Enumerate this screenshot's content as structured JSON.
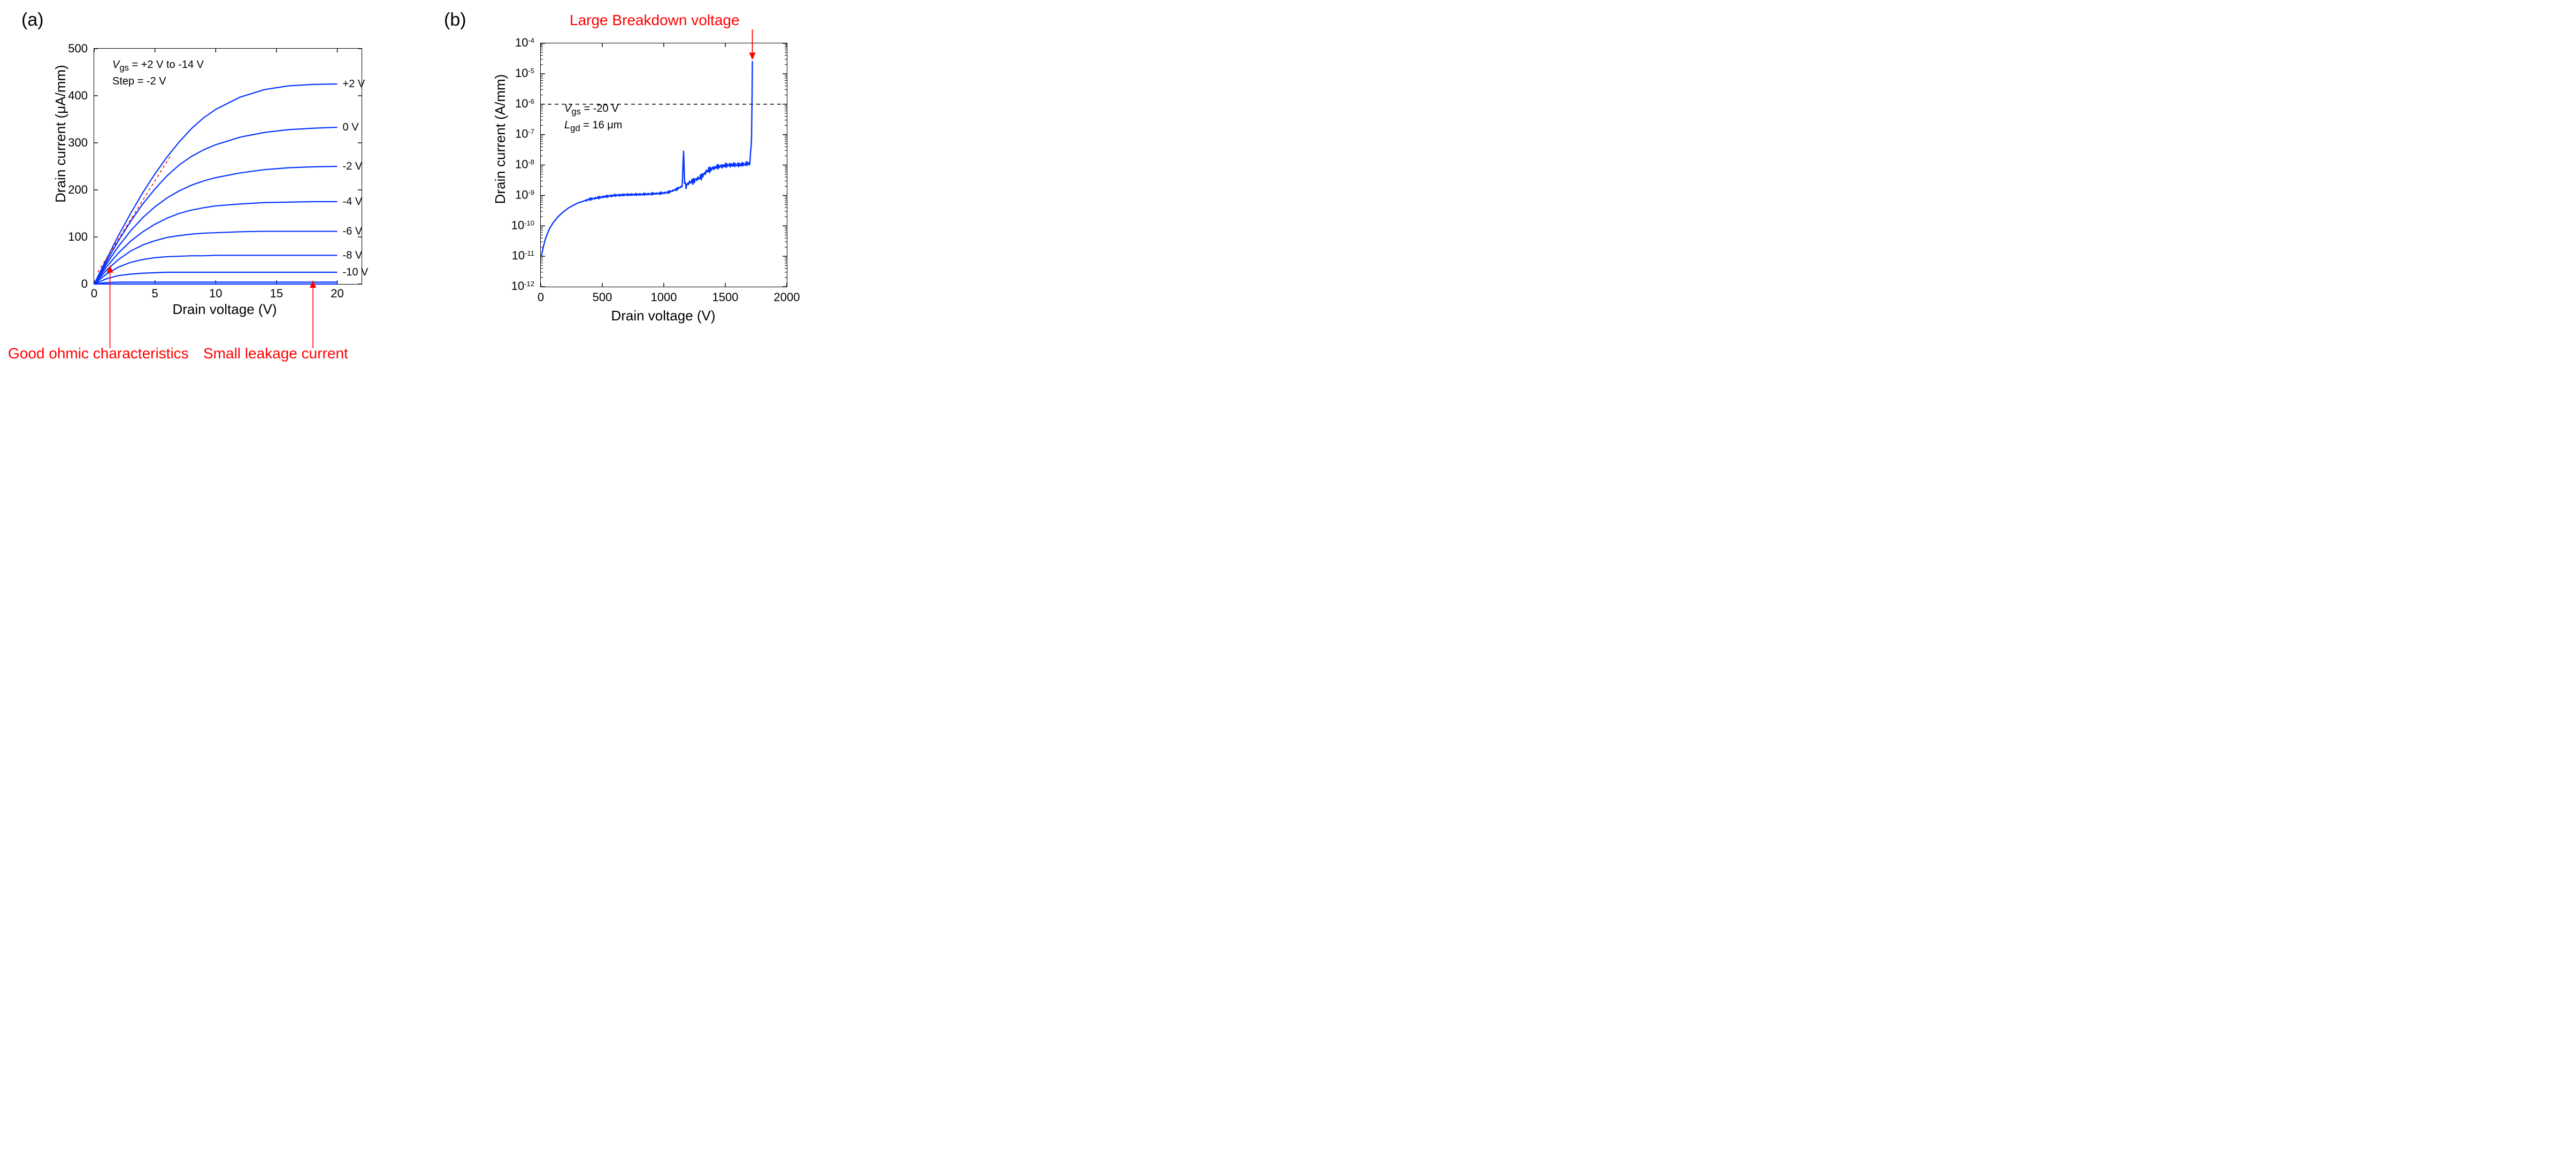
{
  "panelA": {
    "label": "(a)",
    "chart": {
      "type": "line",
      "xlabel": "Drain voltage (V)",
      "ylabel": "Drain current (μA/mm)",
      "xlim": [
        0,
        22
      ],
      "ylim": [
        0,
        500
      ],
      "xtick_step": 5,
      "ytick_step": 100,
      "xticks": [
        0,
        5,
        10,
        15,
        20
      ],
      "yticks": [
        0,
        100,
        200,
        300,
        400,
        500
      ],
      "line_color": "#0433ff",
      "line_width": 2.2,
      "background_color": "#ffffff",
      "frame_color": "#000000",
      "label_fontsize": 26,
      "tick_fontsize": 22,
      "caption_lines": [
        "V_gs = +2 V to -14 V",
        "Step = -2 V"
      ],
      "ohmic_line": {
        "x0": 0.3,
        "y0": 25,
        "x1": 6.3,
        "y1": 273,
        "color": "#ff0000",
        "dash": "5,5",
        "width": 1.6
      },
      "series": [
        {
          "label": "+2 V",
          "x": [
            0,
            1,
            2,
            3,
            4,
            5,
            6,
            7,
            8,
            9,
            10,
            12,
            14,
            16,
            18,
            20
          ],
          "y": [
            0,
            52,
            103,
            150,
            194,
            234,
            270,
            302,
            330,
            353,
            371,
            397,
            413,
            421,
            424,
            425
          ]
        },
        {
          "label": "0 V",
          "x": [
            0,
            1,
            2,
            3,
            4,
            5,
            6,
            7,
            8,
            9,
            10,
            12,
            14,
            16,
            18,
            20
          ],
          "y": [
            0,
            47,
            92,
            133,
            170,
            202,
            230,
            253,
            271,
            285,
            296,
            312,
            322,
            328,
            331,
            333
          ]
        },
        {
          "label": "-2 V",
          "x": [
            0,
            1,
            2,
            3,
            4,
            5,
            6,
            7,
            8,
            9,
            10,
            12,
            14,
            16,
            18,
            20
          ],
          "y": [
            0,
            42,
            80,
            113,
            141,
            164,
            183,
            198,
            210,
            219,
            226,
            236,
            243,
            247,
            249,
            250
          ]
        },
        {
          "label": "-4 V",
          "x": [
            0,
            1,
            2,
            3,
            4,
            5,
            6,
            7,
            8,
            9,
            10,
            12,
            14,
            16,
            18,
            20
          ],
          "y": [
            0,
            36,
            66,
            91,
            111,
            127,
            140,
            150,
            157,
            162,
            166,
            170,
            173,
            174,
            175,
            175
          ]
        },
        {
          "label": "-6 V",
          "x": [
            0,
            1,
            2,
            3,
            4,
            5,
            6,
            7,
            8,
            9,
            10,
            12,
            14,
            16,
            18,
            20
          ],
          "y": [
            0,
            29,
            52,
            70,
            83,
            92,
            99,
            103,
            106,
            108,
            109,
            111,
            112,
            112,
            112,
            112
          ]
        },
        {
          "label": "-8 V",
          "x": [
            0,
            1,
            2,
            3,
            4,
            5,
            6,
            7,
            8,
            9,
            10,
            12,
            14,
            16,
            18,
            20
          ],
          "y": [
            0,
            21,
            36,
            46,
            52,
            56,
            58,
            59,
            60,
            60,
            61,
            61,
            61,
            61,
            61,
            61
          ]
        },
        {
          "label": "-10 V",
          "x": [
            0,
            1,
            2,
            3,
            4,
            5,
            6,
            7,
            8,
            9,
            10,
            12,
            14,
            16,
            18,
            20
          ],
          "y": [
            0,
            11,
            18,
            21,
            23,
            24,
            25,
            25,
            25,
            25,
            25,
            25,
            25,
            25,
            25,
            25
          ]
        },
        {
          "label": "",
          "x": [
            0,
            1,
            2,
            3,
            4,
            5,
            6,
            7,
            8,
            9,
            10,
            12,
            14,
            16,
            18,
            20
          ],
          "y": [
            0,
            3,
            4,
            4,
            4,
            4,
            4,
            4,
            4,
            4,
            4,
            4,
            4,
            4,
            4,
            4
          ]
        },
        {
          "label": "",
          "x": [
            0,
            20
          ],
          "y": [
            0,
            0
          ]
        }
      ]
    },
    "annotations": {
      "ohmic": "Good ohmic characteristics",
      "leakage": "Small leakage current"
    }
  },
  "panelB": {
    "label": "(b)",
    "chart": {
      "type": "line-logy",
      "xlabel": "Drain voltage (V)",
      "ylabel": "Drain current (A/mm)",
      "xlim": [
        0,
        2000
      ],
      "ylim_exp": [
        -12,
        -4
      ],
      "xtick_step": 500,
      "xticks": [
        0,
        500,
        1000,
        1500,
        2000
      ],
      "ytick_exponents": [
        -12,
        -11,
        -10,
        -9,
        -8,
        -7,
        -6,
        -5,
        -4
      ],
      "line_color": "#0433ff",
      "line_width": 2.4,
      "background_color": "#ffffff",
      "frame_color": "#000000",
      "label_fontsize": 26,
      "tick_fontsize": 22,
      "caption_lines": [
        "V_gs = -20 V",
        "L_gd = 16 μm"
      ],
      "threshold_line": {
        "exp": -6,
        "dash": "7,6",
        "color": "#000000",
        "width": 1.4
      },
      "breakdown_x": 1720,
      "series": {
        "x": [
          5,
          20,
          40,
          70,
          100,
          140,
          180,
          230,
          300,
          400,
          500,
          600,
          700,
          800,
          900,
          1000,
          1050,
          1100,
          1150,
          1160,
          1170,
          1180,
          1200,
          1250,
          1300,
          1350,
          1400,
          1450,
          1500,
          1550,
          1600,
          1650,
          1700,
          1715,
          1720,
          1722
        ],
        "ye": [
          -11.0,
          -10.7,
          -10.4,
          -10.1,
          -9.9,
          -9.7,
          -9.55,
          -9.4,
          -9.25,
          -9.12,
          -9.05,
          -9.0,
          -8.98,
          -8.97,
          -8.95,
          -8.92,
          -8.88,
          -8.8,
          -8.7,
          -7.5,
          -8.6,
          -8.7,
          -8.6,
          -8.5,
          -8.4,
          -8.2,
          -8.1,
          -8.05,
          -8.02,
          -8.0,
          -8.0,
          -7.98,
          -7.95,
          -7.0,
          -4.6,
          -4.6
        ]
      },
      "noise_amp_exp": 0.12
    },
    "annotation": "Large Breakdown voltage"
  },
  "colors": {
    "red": "#ff0000",
    "blue": "#0433ff",
    "black": "#000000"
  }
}
